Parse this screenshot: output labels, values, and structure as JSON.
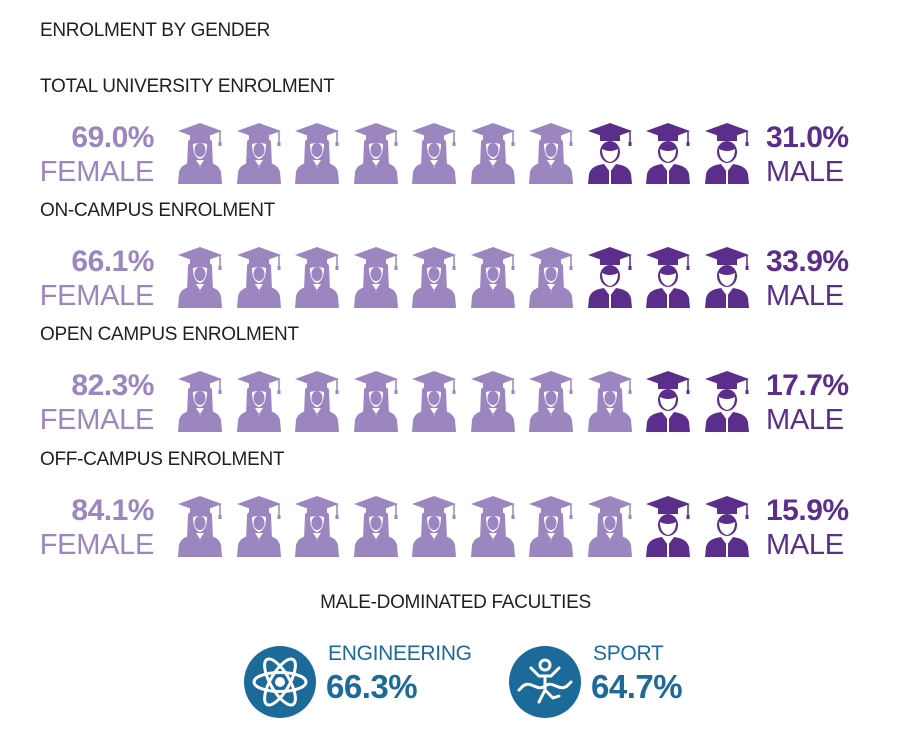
{
  "title": "ENROLMENT BY GENDER",
  "colors": {
    "female": "#9b86c0",
    "male": "#5b2e8c",
    "faculty": "#1b6a99"
  },
  "icon_names": {
    "female": "female-graduate-icon",
    "male": "male-graduate-icon",
    "engineering": "atom-icon",
    "sport": "runner-icon"
  },
  "chart_data": {
    "type": "pictograph",
    "icons_per_row": 10,
    "rows": [
      {
        "label": "TOTAL UNIVERSITY ENROLMENT",
        "female_pct": 69.0,
        "male_pct": 31.0,
        "female_text": "69.0%",
        "male_text": "31.0%",
        "female_label": "FEMALE",
        "male_label": "MALE",
        "female_icons": 7,
        "male_icons": 3
      },
      {
        "label": "ON-CAMPUS ENROLMENT",
        "female_pct": 66.1,
        "male_pct": 33.9,
        "female_text": "66.1%",
        "male_text": "33.9%",
        "female_label": "FEMALE",
        "male_label": "MALE",
        "female_icons": 7,
        "male_icons": 3
      },
      {
        "label": "OPEN CAMPUS ENROLMENT",
        "female_pct": 82.3,
        "male_pct": 17.7,
        "female_text": "82.3%",
        "male_text": "17.7%",
        "female_label": "FEMALE",
        "male_label": "MALE",
        "female_icons": 8,
        "male_icons": 2
      },
      {
        "label": "OFF-CAMPUS ENROLMENT",
        "female_pct": 84.1,
        "male_pct": 15.9,
        "female_text": "84.1%",
        "male_text": "15.9%",
        "female_label": "FEMALE",
        "male_label": "MALE",
        "female_icons": 8,
        "male_icons": 2
      }
    ]
  },
  "faculties": {
    "title": "MALE-DOMINATED FACULTIES",
    "items": [
      {
        "name": "ENGINEERING",
        "value": "66.3%",
        "icon": "atom-icon"
      },
      {
        "name": "SPORT",
        "value": "64.7%",
        "icon": "runner-icon"
      }
    ]
  }
}
